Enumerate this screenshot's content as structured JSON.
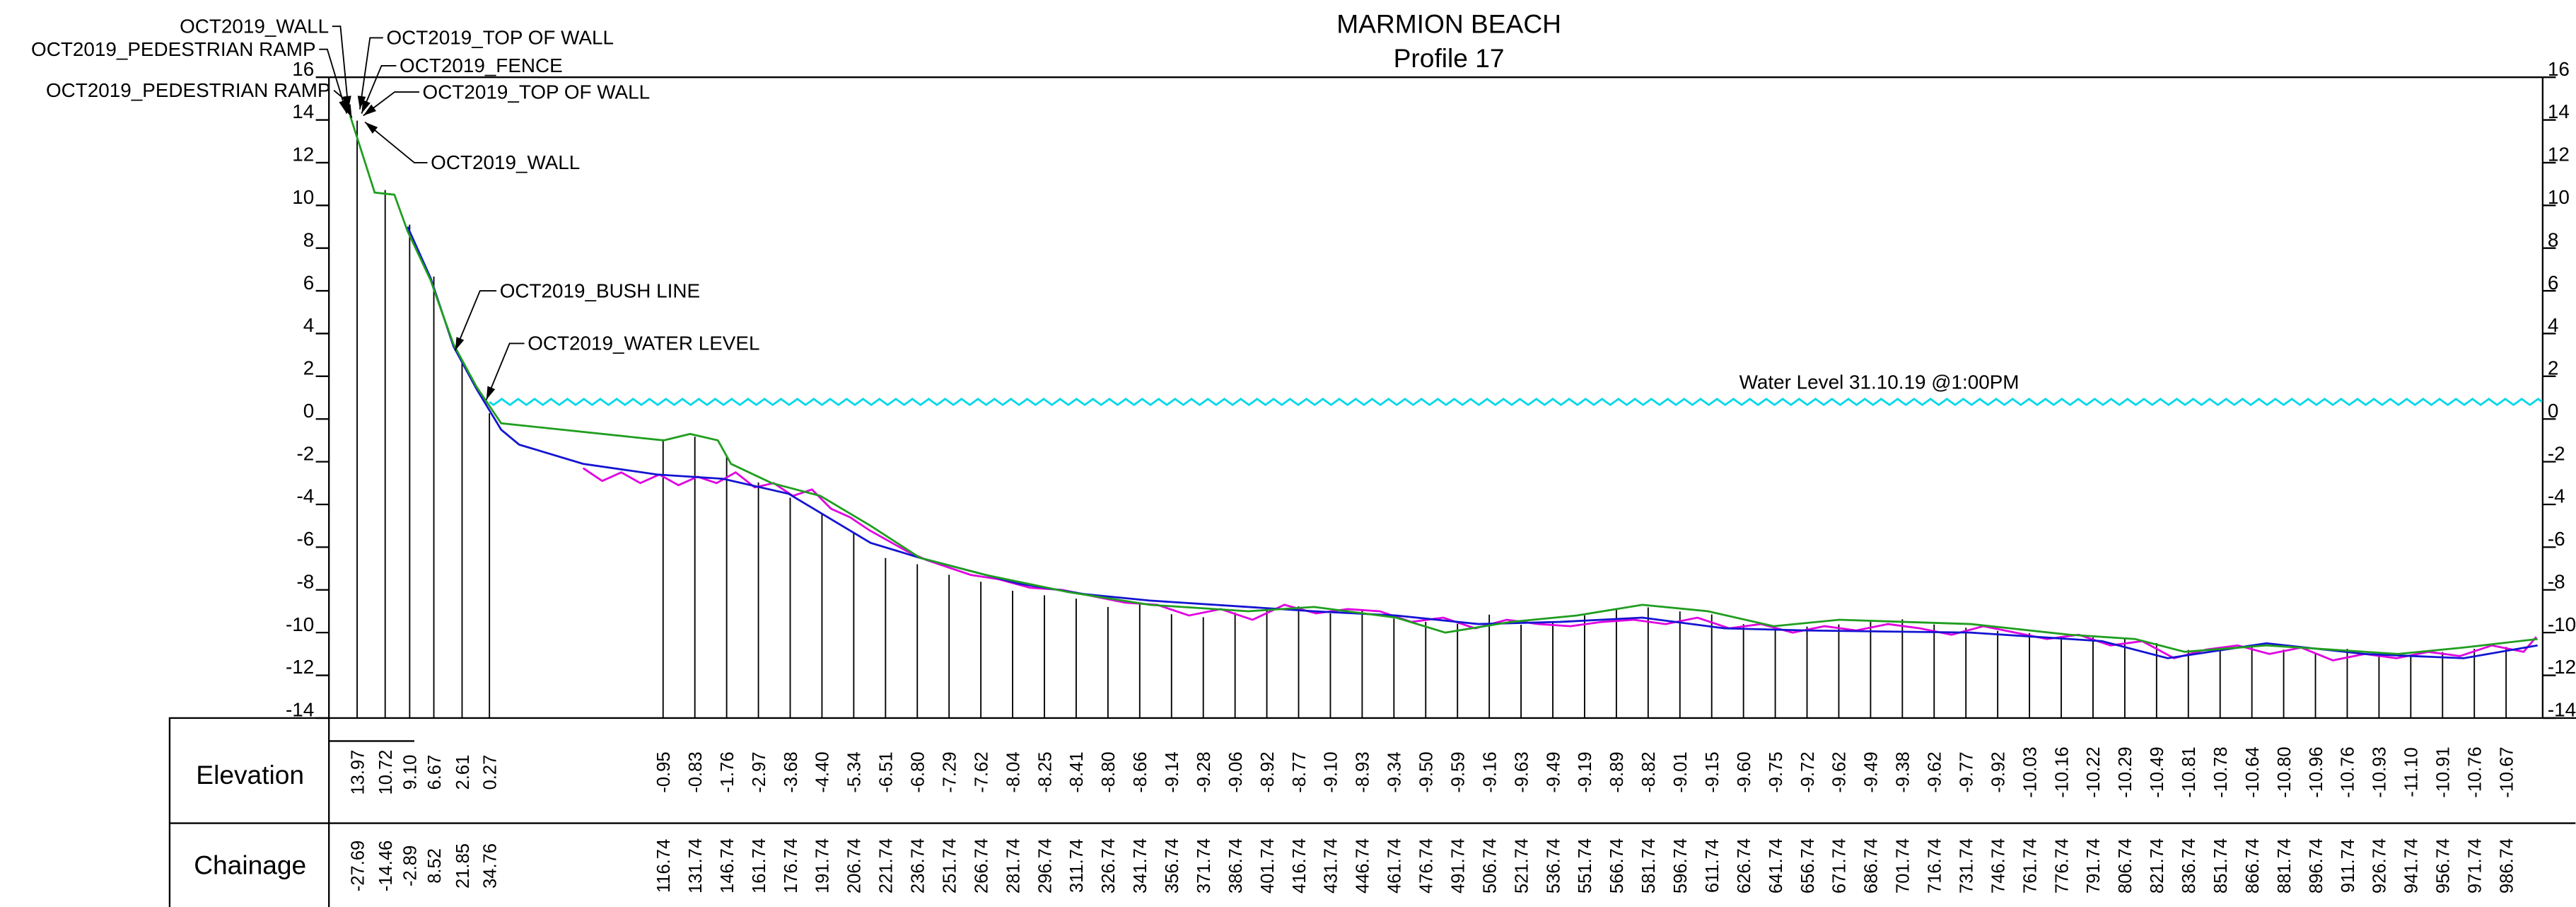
{
  "chart_data": {
    "type": "line",
    "title": "MARMION BEACH",
    "subtitle": "Profile 17",
    "xlim": [
      -41,
      1004
    ],
    "ylim": [
      -14,
      16
    ],
    "yticks": [
      16,
      14,
      12,
      10,
      8,
      6,
      4,
      2,
      0,
      -2,
      -4,
      -6,
      -8,
      -10,
      -12,
      -14
    ],
    "row_labels": [
      "Elevation",
      "Chainage"
    ],
    "series": [
      {
        "color": "#1f9e1f",
        "x": [
          -31,
          -19.4,
          -10.1,
          -3.9,
          7.0,
          10.9,
          17.8,
          28.7,
          40.3,
          117,
          129.5,
          142.6,
          148.8,
          168,
          191,
          214.7,
          238,
          269,
          307.8,
          346.5,
          393,
          424,
          462.8,
          486,
          517,
          548,
          579,
          610,
          641,
          672,
          703,
          734,
          780.6,
          811.6,
          835,
          873.6,
          904.7,
          935.7,
          966.7,
          1001.6
        ],
        "values": [
          14.2,
          10.6,
          10.5,
          8.8,
          6.5,
          5.4,
          3.5,
          1.5,
          -0.2,
          -1.0,
          -0.7,
          -1.0,
          -2.1,
          -3.0,
          -3.6,
          -5.0,
          -6.5,
          -7.3,
          -8.1,
          -8.7,
          -9.0,
          -8.8,
          -9.3,
          -10.0,
          -9.5,
          -9.2,
          -8.7,
          -9.0,
          -9.7,
          -9.4,
          -9.5,
          -9.6,
          -10.1,
          -10.3,
          -10.9,
          -10.6,
          -10.8,
          -11.0,
          -10.7,
          -10.3
        ]
      },
      {
        "color": "#1414d2",
        "x": [
          -3.9,
          7.0,
          17.8,
          28.7,
          40.3,
          48.8,
          79,
          114,
          145,
          176,
          214.7,
          238,
          284.5,
          315.5,
          346.5,
          424,
          462.8,
          501.6,
          540,
          579,
          617.8,
          656.6,
          734,
          796,
          827,
          873.6,
          920,
          966.7,
          1001.6
        ],
        "values": [
          9.0,
          6.6,
          3.4,
          1.4,
          -0.5,
          -1.2,
          -2.1,
          -2.6,
          -2.8,
          -3.5,
          -5.8,
          -6.5,
          -7.7,
          -8.2,
          -8.5,
          -9.0,
          -9.2,
          -9.6,
          -9.5,
          -9.3,
          -9.8,
          -9.9,
          -10.0,
          -10.4,
          -11.2,
          -10.5,
          -11.0,
          -11.2,
          -10.6
        ]
      },
      {
        "color": "#e000e0",
        "x": [
          79,
          88,
          97,
          106,
          115,
          124,
          133,
          142,
          151,
          160,
          169,
          178,
          187,
          196,
          205,
          214,
          223,
          232,
          241,
          250,
          262,
          275,
          290,
          305,
          320,
          335,
          350,
          365,
          380,
          395,
          410,
          425,
          440,
          455,
          470,
          485,
          500,
          515,
          530,
          545,
          560,
          575,
          590,
          605,
          620,
          635,
          650,
          665,
          680,
          695,
          710,
          725,
          740,
          755,
          770,
          785,
          800,
          815,
          830,
          845,
          860,
          875,
          890,
          905,
          920,
          935,
          950,
          965,
          980,
          995,
          1001
        ],
        "values": [
          -2.3,
          -2.9,
          -2.5,
          -3.0,
          -2.6,
          -3.1,
          -2.7,
          -3.0,
          -2.5,
          -3.2,
          -3.0,
          -3.6,
          -3.3,
          -4.2,
          -4.6,
          -5.2,
          -5.7,
          -6.2,
          -6.6,
          -6.9,
          -7.3,
          -7.5,
          -7.9,
          -8.0,
          -8.3,
          -8.6,
          -8.7,
          -9.2,
          -8.9,
          -9.4,
          -8.7,
          -9.1,
          -8.9,
          -9.0,
          -9.5,
          -9.3,
          -9.8,
          -9.4,
          -9.6,
          -9.7,
          -9.5,
          -9.4,
          -9.6,
          -9.3,
          -9.8,
          -9.6,
          -10.0,
          -9.7,
          -9.9,
          -9.6,
          -9.8,
          -10.1,
          -9.7,
          -10.0,
          -10.3,
          -10.1,
          -10.6,
          -10.4,
          -11.2,
          -10.8,
          -10.6,
          -11.0,
          -10.7,
          -11.3,
          -11.0,
          -11.2,
          -10.9,
          -11.1,
          -10.6,
          -10.9,
          -10.2
        ]
      }
    ],
    "stations": {
      "x": [
        -27.69,
        -14.46,
        -2.89,
        8.52,
        21.85,
        34.76,
        116.74,
        131.74,
        146.74,
        161.74,
        176.74,
        191.74,
        206.74,
        221.74,
        236.74,
        251.74,
        266.74,
        281.74,
        296.74,
        311.74,
        326.74,
        341.74,
        356.74,
        371.74,
        386.74,
        401.74,
        416.74,
        431.74,
        446.74,
        461.74,
        476.74,
        491.74,
        506.74,
        521.74,
        536.74,
        551.74,
        566.74,
        581.74,
        596.74,
        611.74,
        626.74,
        641.74,
        656.74,
        671.74,
        686.74,
        701.74,
        716.74,
        731.74,
        746.74,
        761.74,
        776.74,
        791.74,
        806.74,
        821.74,
        836.74,
        851.74,
        866.74,
        881.74,
        896.74,
        911.74,
        926.74,
        941.74,
        956.74,
        971.74,
        986.74
      ],
      "values": [
        13.97,
        10.72,
        9.1,
        6.67,
        2.61,
        0.27,
        -0.95,
        -0.83,
        -1.76,
        -2.97,
        -3.68,
        -4.4,
        -5.34,
        -6.51,
        -6.8,
        -7.29,
        -7.62,
        -8.04,
        -8.25,
        -8.41,
        -8.8,
        -8.66,
        -9.14,
        -9.28,
        -9.06,
        -8.92,
        -8.77,
        -9.1,
        -8.93,
        -9.34,
        -9.5,
        -9.59,
        -9.16,
        -9.63,
        -9.49,
        -9.19,
        -8.89,
        -8.82,
        -9.01,
        -9.15,
        -9.6,
        -9.75,
        -9.72,
        -9.62,
        -9.49,
        -9.38,
        -9.62,
        -9.77,
        -9.92,
        -10.03,
        -10.16,
        -10.22,
        -10.29,
        -10.49,
        -10.81,
        -10.78,
        -10.64,
        -10.8,
        -10.96,
        -10.76,
        -10.93,
        -11.1,
        -10.91,
        -10.76,
        -10.67
      ],
      "value_labels": [
        "13.97",
        "10.72",
        "9.10",
        "6.67",
        "2.61",
        "0.27",
        "-0.95",
        "-0.83",
        "-1.76",
        "-2.97",
        "-3.68",
        "-4.40",
        "-5.34",
        "-6.51",
        "-6.80",
        "-7.29",
        "-7.62",
        "-8.04",
        "-8.25",
        "-8.41",
        "-8.80",
        "-8.66",
        "-9.14",
        "-9.28",
        "-9.06",
        "-8.92",
        "-8.77",
        "-9.10",
        "-8.93",
        "-9.34",
        "-9.50",
        "-9.59",
        "-9.16",
        "-9.63",
        "-9.49",
        "-9.19",
        "-8.89",
        "-8.82",
        "-9.01",
        "-9.15",
        "-9.60",
        "-9.75",
        "-9.72",
        "-9.62",
        "-9.49",
        "-9.38",
        "-9.62",
        "-9.77",
        "-9.92",
        "-10.03",
        "-10.16",
        "-10.22",
        "-10.29",
        "-10.49",
        "-10.81",
        "-10.78",
        "-10.64",
        "-10.80",
        "-10.96",
        "-10.76",
        "-10.93",
        "-11.10",
        "-10.91",
        "-10.76",
        "-10.67"
      ]
    },
    "water_level": {
      "label": "Water Level 31.10.19 @1:00PM",
      "value": 0.8,
      "color": "#00d8e8"
    },
    "annotations": [
      {
        "text": "OCT2019_WALL",
        "x": -31.8,
        "y": 14.5
      },
      {
        "text": "OCT2019_PEDESTRIAN RAMP",
        "x": -32.6,
        "y": 14.3
      },
      {
        "text": "OCT2019_PEDESTRIAN RAMP",
        "x": -30.2,
        "y": 14.1
      },
      {
        "text": "OCT2019_TOP OF WALL",
        "x": -26.4,
        "y": 14.5
      },
      {
        "text": "OCT2019_FENCE",
        "x": -25.6,
        "y": 14.3
      },
      {
        "text": "OCT2019_TOP OF WALL",
        "x": -24.8,
        "y": 14.2
      },
      {
        "text": "OCT2019_WALL",
        "x": -24.0,
        "y": 13.9
      },
      {
        "text": "OCT2019_BUSH LINE",
        "x": 18.6,
        "y": 3.2
      },
      {
        "text": "OCT2019_WATER LEVEL",
        "x": 33.3,
        "y": 0.9
      }
    ]
  }
}
